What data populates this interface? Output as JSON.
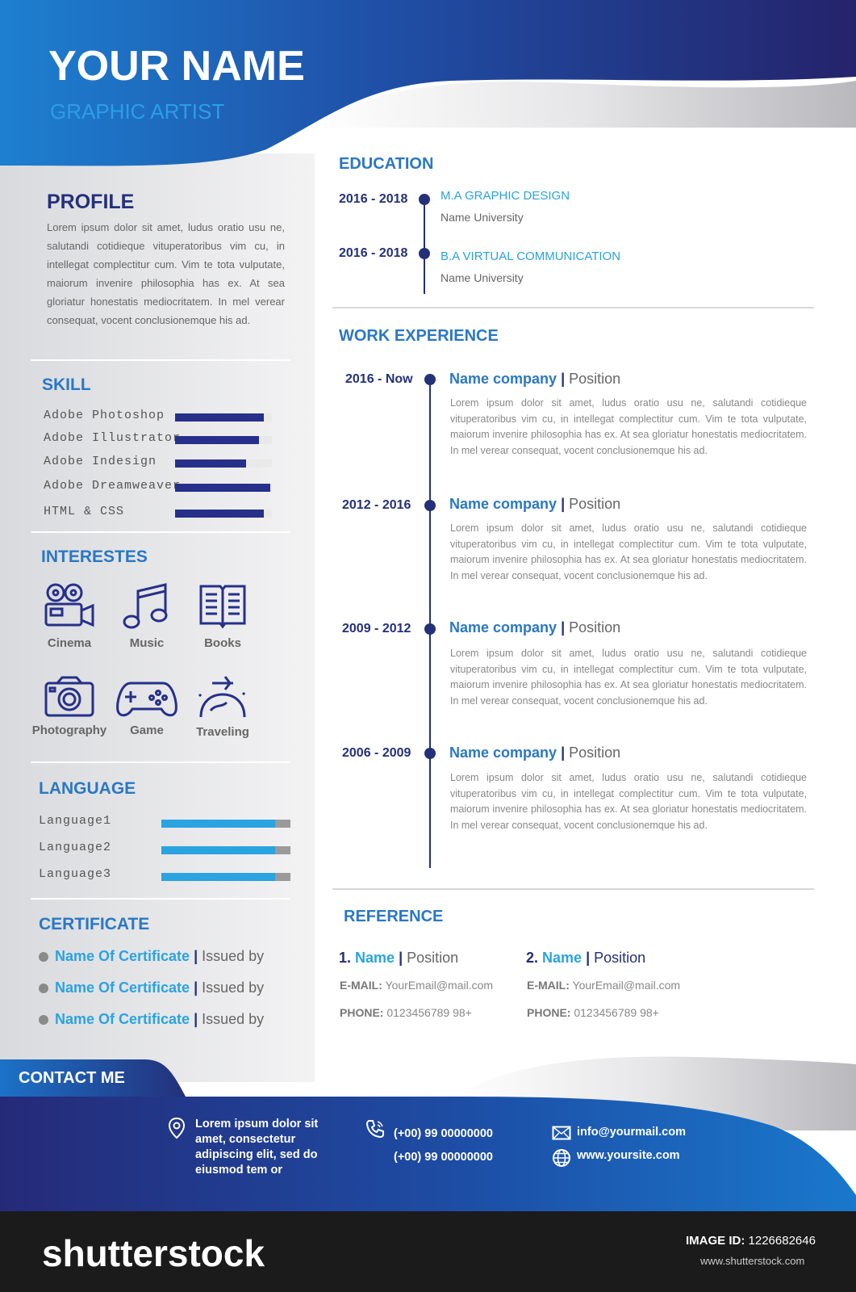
{
  "header": {
    "name": "YOUR NAME",
    "role": "GRAPHIC ARTIST"
  },
  "profile": {
    "title": "PROFILE",
    "text": "Lorem ipsum dolor sit amet, ludus oratio usu ne, salutandi cotidieque vituperatoribus vim cu, in intellegat complectitur cum. Vim te tota vulputate, maiorum invenire philosophia has ex. At sea gloriatur honestatis mediocritatem. In mel verear consequat, vocent conclusionemque his ad."
  },
  "skill": {
    "title": "SKILL",
    "items": [
      {
        "label": "Adobe Photoshop",
        "level": 0.92
      },
      {
        "label": "Adobe Illustrator",
        "level": 0.87
      },
      {
        "label": "Adobe Indesign",
        "level": 0.73
      },
      {
        "label": "Adobe Dreamweaver",
        "level": 0.98
      },
      {
        "label": "HTML & CSS",
        "level": 0.92
      }
    ]
  },
  "interests": {
    "title": "INTERESTES",
    "items": [
      {
        "label": "Cinema",
        "icon": "film-camera-icon"
      },
      {
        "label": "Music",
        "icon": "music-note-icon"
      },
      {
        "label": "Books",
        "icon": "book-icon"
      },
      {
        "label": "Photography",
        "icon": "photo-camera-icon"
      },
      {
        "label": "Game",
        "icon": "gamepad-icon"
      },
      {
        "label": "Traveling",
        "icon": "airplane-globe-icon"
      }
    ]
  },
  "language": {
    "title": "LANGUAGE",
    "items": [
      {
        "label": "Language1",
        "level": 0.88
      },
      {
        "label": "Language2",
        "level": 0.88
      },
      {
        "label": "Language3",
        "level": 0.88
      }
    ]
  },
  "certificate": {
    "title": "CERTIFICATE",
    "items": [
      {
        "name": "Name Of Certificate",
        "sep": " | ",
        "by": "Issued by"
      },
      {
        "name": "Name Of Certificate",
        "sep": " | ",
        "by": "Issued by"
      },
      {
        "name": "Name Of Certificate",
        "sep": " | ",
        "by": "Issued by"
      }
    ]
  },
  "education": {
    "title": "EDUCATION",
    "items": [
      {
        "years": "2016 - 2018",
        "degree": "M.A GRAPHIC DESIGN",
        "school": "Name University"
      },
      {
        "years": "2016 - 2018",
        "degree": "B.A VIRTUAL COMMUNICATION",
        "school": "Name University"
      }
    ]
  },
  "work": {
    "title": "WORK EXPERIENCE",
    "items": [
      {
        "years": "2016 - Now",
        "company": "Name company",
        "sep": " | ",
        "position": "Position",
        "desc": "Lorem ipsum dolor sit amet, ludus oratio usu ne, salutandi cotidieque vituperatoribus vim cu, in intellegat complectitur cum. Vim te tota vulputate, maiorum invenire philosophia has ex. At sea gloriatur honestatis mediocritatem. In mel verear consequat, vocent conclusionemque his ad."
      },
      {
        "years": "2012 - 2016",
        "company": "Name company",
        "sep": " | ",
        "position": "Position",
        "desc": "Lorem ipsum dolor sit amet, ludus oratio usu ne, salutandi cotidieque vituperatoribus vim cu, in intellegat complectitur cum. Vim te tota vulputate, maiorum invenire philosophia has ex. At sea gloriatur honestatis mediocritatem. In mel verear consequat, vocent conclusionemque his ad."
      },
      {
        "years": "2009 - 2012",
        "company": "Name company",
        "sep": " | ",
        "position": "Position",
        "desc": "Lorem ipsum dolor sit amet, ludus oratio usu ne, salutandi cotidieque vituperatoribus vim cu, in intellegat complectitur cum. Vim te tota vulputate, maiorum invenire philosophia has ex. At sea gloriatur honestatis mediocritatem. In mel verear consequat, vocent conclusionemque his ad."
      },
      {
        "years": "2006 - 2009",
        "company": "Name company",
        "sep": " | ",
        "position": "Position",
        "desc": "Lorem ipsum dolor sit amet, ludus oratio usu ne, salutandi cotidieque vituperatoribus vim cu, in intellegat complectitur cum. Vim te tota vulputate, maiorum invenire philosophia has ex. At sea gloriatur honestatis mediocritatem. In mel verear consequat, vocent conclusionemque his ad."
      }
    ]
  },
  "reference": {
    "title": "REFERENCE",
    "items": [
      {
        "num": "1.",
        "name": "Name",
        "sep": " | ",
        "position": "Position",
        "email_key": "E-MAIL:",
        "email": "YourEmail@mail.com",
        "phone_key": "PHONE:",
        "phone": "0123456789 98+"
      },
      {
        "num": "2.",
        "name": "Name",
        "sep": " | ",
        "position": "Position",
        "email_key": "E-MAIL:",
        "email": "YourEmail@mail.com",
        "phone_key": "PHONE:",
        "phone": "0123456789 98+"
      }
    ]
  },
  "contact": {
    "title": "CONTACT ME",
    "address": "Lorem ipsum dolor sit amet, consectetur adipiscing elit, sed do eiusmod tem   or",
    "phone1": "(+00) 99 00000000",
    "phone2": "(+00) 99 00000000",
    "email": "info@yourmail.com",
    "website": "www.yoursite.com"
  },
  "footer": {
    "logo": "shutterstock",
    "image_id_label": "IMAGE ID:",
    "image_id": "1226682646",
    "site": "www.shutterstock.com"
  },
  "colors": {
    "navy": "#24307a",
    "blue": "#2a78c4",
    "light_blue": "#2aa3e0",
    "sidebar_gray": "#e8e8ea",
    "footer_bar": "#1b1b1b"
  }
}
